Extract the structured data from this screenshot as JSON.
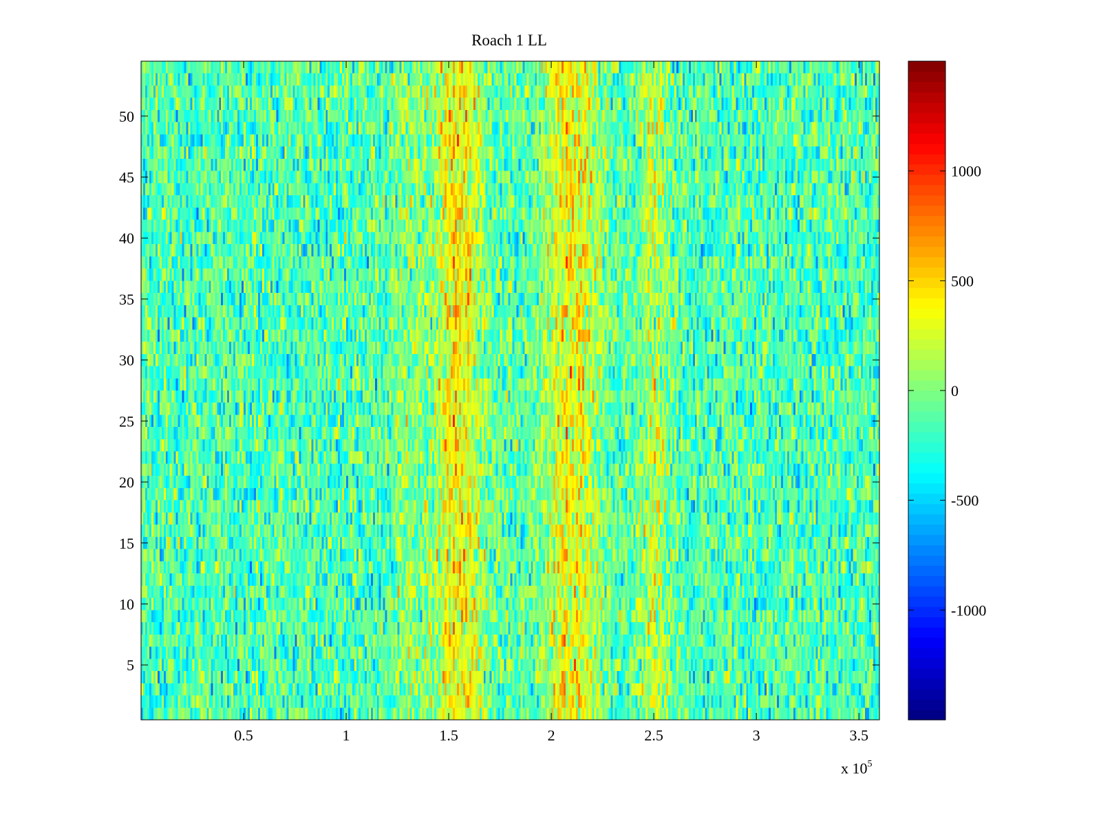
{
  "chart_data": {
    "type": "heatmap",
    "title": "Roach 1 LL",
    "xlabel": "",
    "ylabel": "",
    "x_multiplier_label": "x 10",
    "x_multiplier_exponent": "5",
    "x_range": [
      0,
      3.6
    ],
    "y_range": [
      0.5,
      54.5
    ],
    "x_ticks": [
      0.5,
      1,
      1.5,
      2,
      2.5,
      3,
      3.5
    ],
    "x_tick_labels": [
      "0.5",
      "1",
      "1.5",
      "2",
      "2.5",
      "3",
      "3.5"
    ],
    "y_ticks": [
      5,
      10,
      15,
      20,
      25,
      30,
      35,
      40,
      45,
      50
    ],
    "y_tick_labels": [
      "5",
      "10",
      "15",
      "20",
      "25",
      "30",
      "35",
      "40",
      "45",
      "50"
    ],
    "n_rows": 54,
    "colormap": "jet",
    "colorbar": {
      "range": [
        -1500,
        1500
      ],
      "ticks": [
        -1000,
        -500,
        0,
        500,
        1000
      ],
      "tick_labels": [
        "-1000",
        "-500",
        "0",
        "500",
        "1000"
      ]
    },
    "baseline_value": -150,
    "noise_amplitude": 300,
    "bands": [
      {
        "center": 1.55,
        "width": 0.12,
        "peak": 550
      },
      {
        "center": 2.1,
        "width": 0.14,
        "peak": 520
      },
      {
        "center": 2.5,
        "width": 0.08,
        "peak": 300
      },
      {
        "center": 1.3,
        "width": 0.07,
        "peak": 200
      }
    ],
    "grid": false,
    "legend": "none"
  }
}
